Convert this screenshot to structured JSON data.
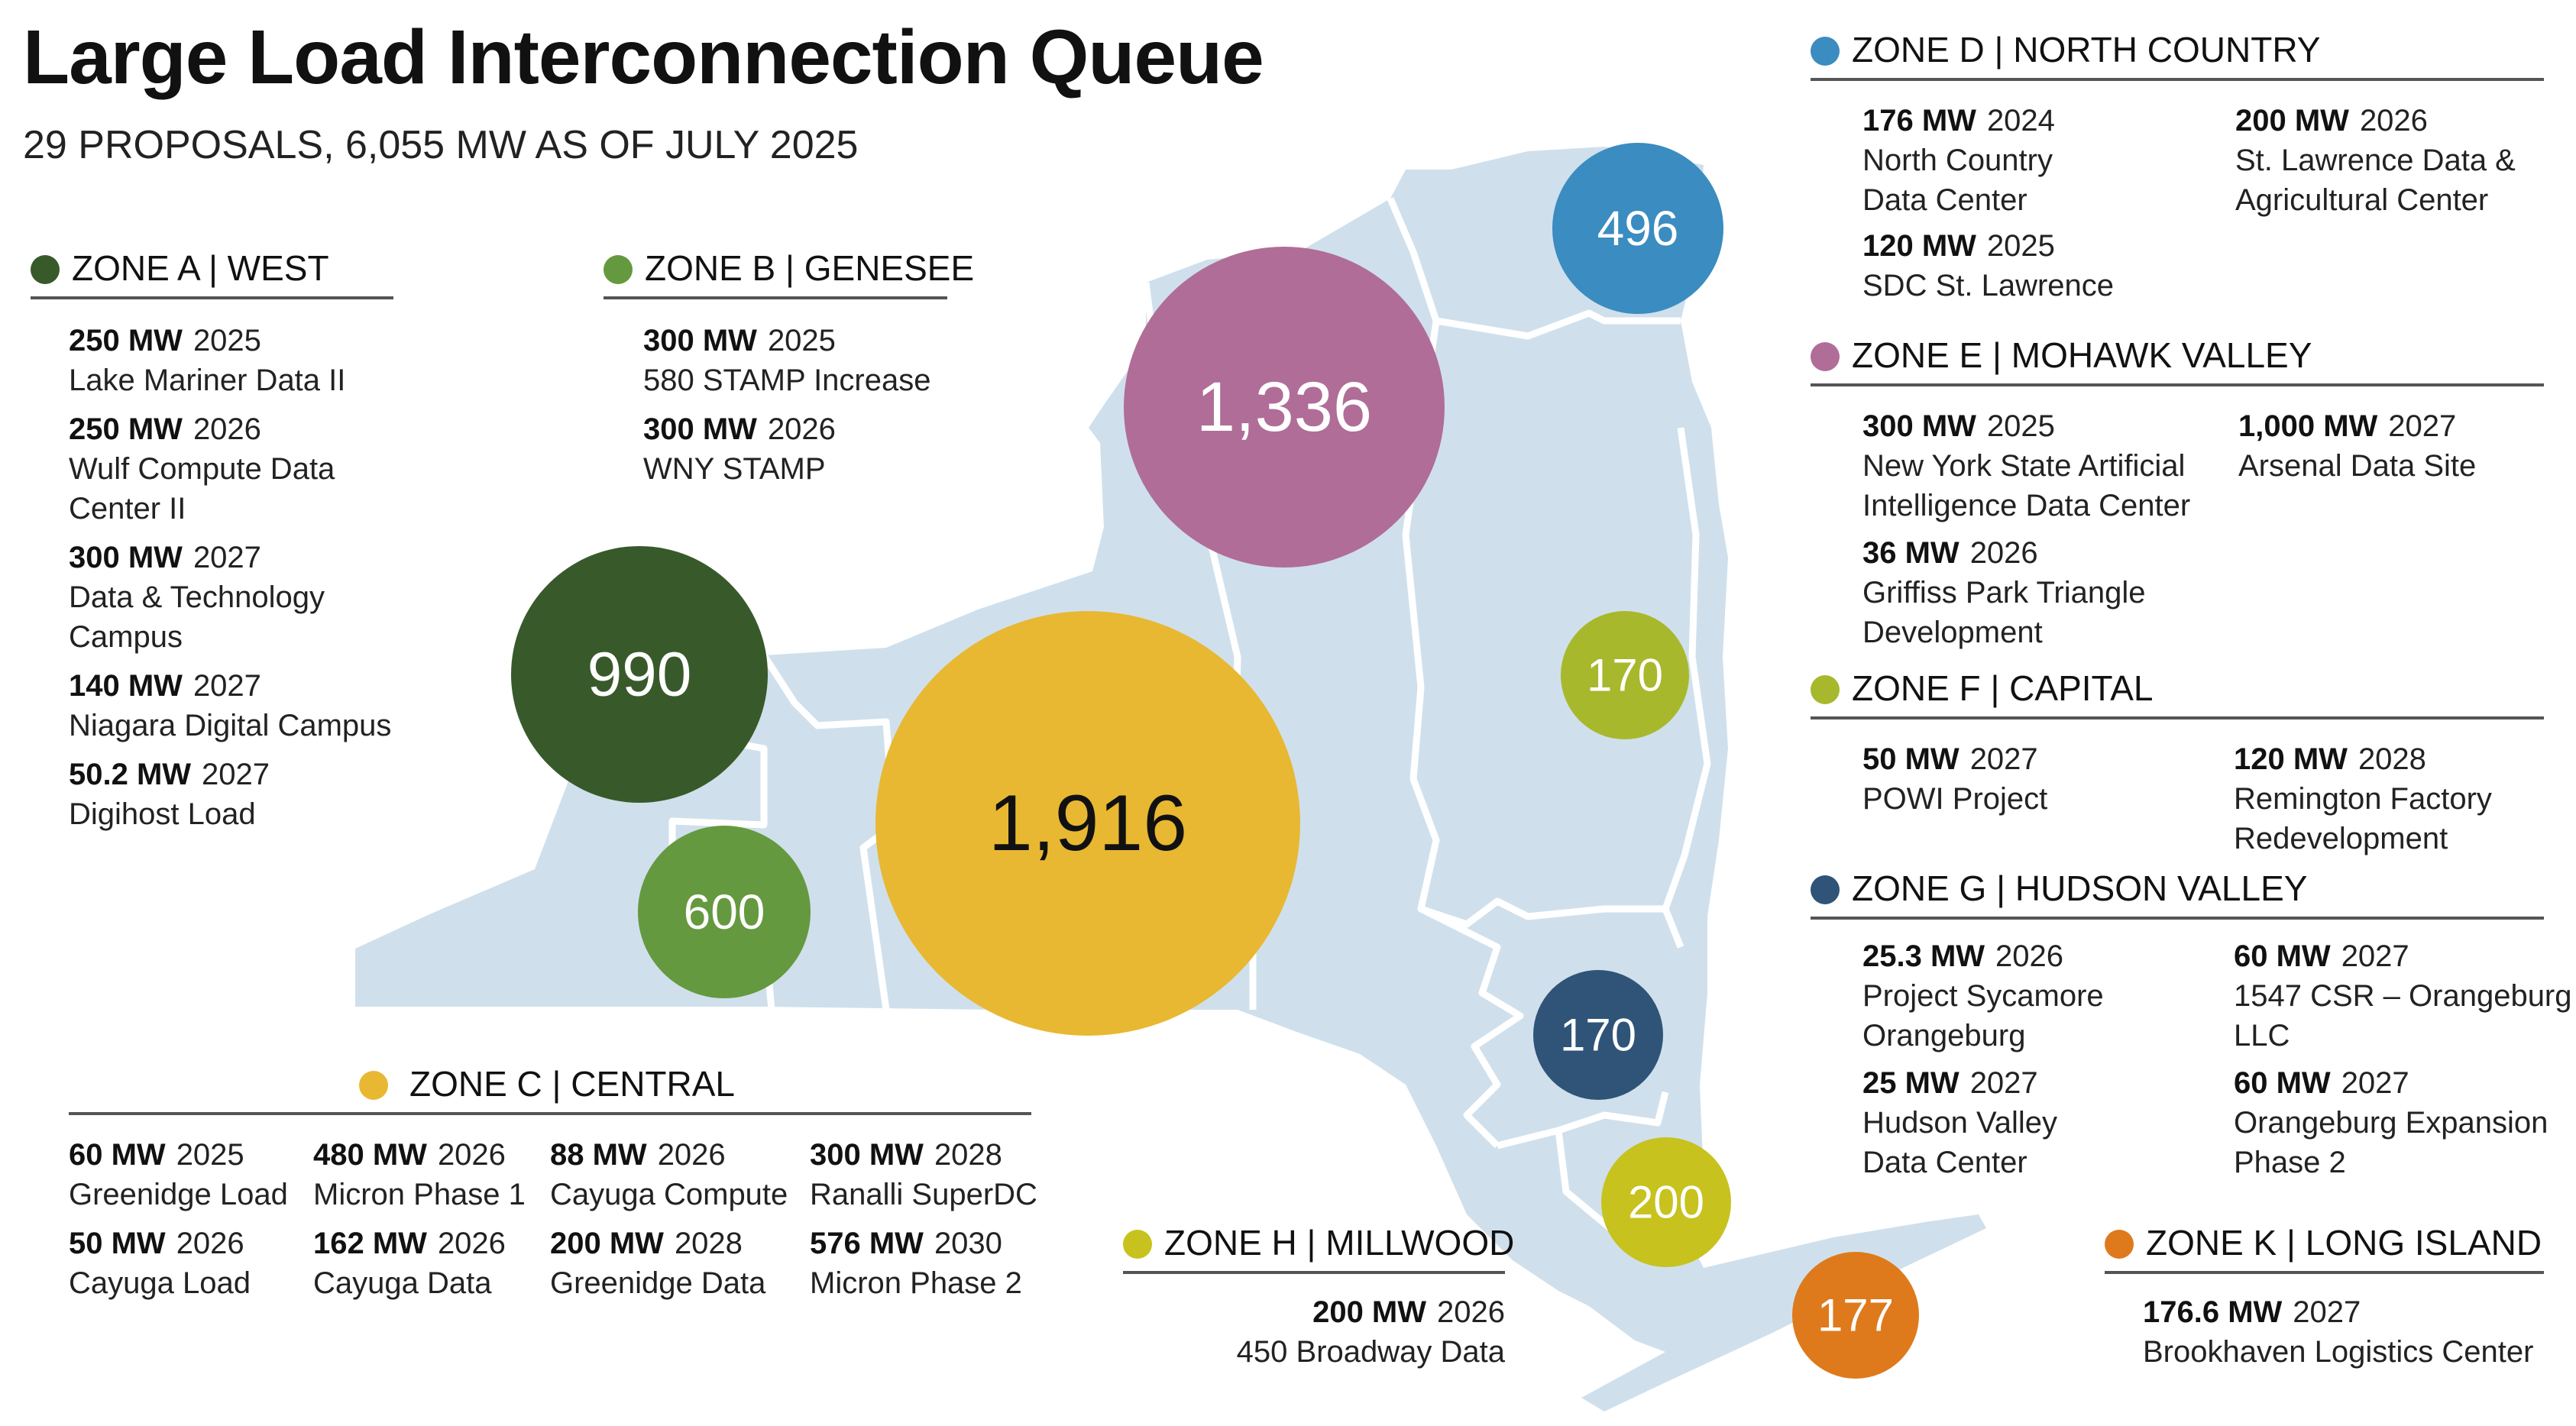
{
  "title": "Large Load Interconnection Queue",
  "subtitle": "29 PROPOSALS, 6,055 MW AS OF JULY 2025",
  "colors": {
    "map_fill": "#cfe0ec",
    "border": "#ffffff",
    "A": "#385a2b",
    "B": "#65993f",
    "C": "#e8b832",
    "D": "#3b8cc0",
    "E": "#b06d98",
    "F": "#a8b82c",
    "G": "#2f5478",
    "H": "#c7c21e",
    "K": "#de7a1c"
  },
  "bubbles": [
    {
      "zone": "A",
      "label": "990",
      "value": 990
    },
    {
      "zone": "B",
      "label": "600",
      "value": 600
    },
    {
      "zone": "C",
      "label": "1,916",
      "value": 1916
    },
    {
      "zone": "D",
      "label": "496",
      "value": 496
    },
    {
      "zone": "E",
      "label": "1,336",
      "value": 1336
    },
    {
      "zone": "F",
      "label": "170",
      "value": 170
    },
    {
      "zone": "G",
      "label": "170",
      "value": 170
    },
    {
      "zone": "H",
      "label": "200",
      "value": 200
    },
    {
      "zone": "K",
      "label": "177",
      "value": 177
    }
  ],
  "zones": {
    "A": {
      "label": "ZONE A | WEST",
      "entries": [
        {
          "mw": "250 MW",
          "year": "2025",
          "name": [
            "Lake Mariner Data II"
          ]
        },
        {
          "mw": "250 MW",
          "year": "2026",
          "name": [
            "Wulf Compute Data",
            "Center II"
          ]
        },
        {
          "mw": "300 MW",
          "year": "2027",
          "name": [
            "Data & Technology",
            "Campus"
          ]
        },
        {
          "mw": "140 MW",
          "year": "2027",
          "name": [
            "Niagara Digital Campus"
          ]
        },
        {
          "mw": "50.2 MW",
          "year": "2027",
          "name": [
            "Digihost Load"
          ]
        }
      ]
    },
    "B": {
      "label": "ZONE B  | GENESEE",
      "entries": [
        {
          "mw": "300 MW",
          "year": "2025",
          "name": [
            "580 STAMP Increase"
          ]
        },
        {
          "mw": "300 MW",
          "year": "2026",
          "name": [
            "WNY STAMP"
          ]
        }
      ]
    },
    "C": {
      "label": "ZONE C | CENTRAL",
      "entries": [
        {
          "mw": "60 MW",
          "year": "2025",
          "name": [
            "Greenidge Load"
          ]
        },
        {
          "mw": "480 MW",
          "year": "2026",
          "name": [
            "Micron Phase 1"
          ]
        },
        {
          "mw": "88 MW",
          "year": "2026",
          "name": [
            "Cayuga Compute"
          ]
        },
        {
          "mw": "300 MW",
          "year": "2028",
          "name": [
            "Ranalli SuperDC"
          ]
        },
        {
          "mw": "50 MW",
          "year": "2026",
          "name": [
            "Cayuga Load"
          ]
        },
        {
          "mw": "162 MW",
          "year": "2026",
          "name": [
            "Cayuga Data"
          ]
        },
        {
          "mw": "200 MW",
          "year": "2028",
          "name": [
            "Greenidge Data"
          ]
        },
        {
          "mw": "576 MW",
          "year": "2030",
          "name": [
            "Micron Phase 2"
          ]
        }
      ]
    },
    "D": {
      "label": "ZONE D | NORTH COUNTRY",
      "entries": [
        {
          "mw": "176 MW",
          "year": "2024",
          "name": [
            "North Country",
            "Data Center"
          ]
        },
        {
          "mw": "200 MW",
          "year": "2026",
          "name": [
            "St. Lawrence Data &",
            "Agricultural Center"
          ]
        },
        {
          "mw": "120 MW",
          "year": "2025",
          "name": [
            "SDC St. Lawrence"
          ]
        }
      ]
    },
    "E": {
      "label": "ZONE E | MOHAWK VALLEY",
      "entries": [
        {
          "mw": "300 MW",
          "year": "2025",
          "name": [
            "New York State Artificial",
            "Intelligence Data Center"
          ]
        },
        {
          "mw": "1,000 MW",
          "year": "2027",
          "name": [
            "Arsenal Data Site"
          ]
        },
        {
          "mw": "36 MW",
          "year": "2026",
          "name": [
            "Griffiss Park Triangle",
            "Development"
          ]
        }
      ]
    },
    "F": {
      "label": "ZONE F | CAPITAL",
      "entries": [
        {
          "mw": "50 MW",
          "year": "2027",
          "name": [
            "POWI Project"
          ]
        },
        {
          "mw": "120 MW",
          "year": "2028",
          "name": [
            "Remington Factory",
            "Redevelopment"
          ]
        }
      ]
    },
    "G": {
      "label": "ZONE G | HUDSON VALLEY",
      "entries": [
        {
          "mw": "25.3 MW",
          "year": "2026",
          "name": [
            "Project Sycamore",
            "Orangeburg"
          ]
        },
        {
          "mw": "60 MW",
          "year": "2027",
          "name": [
            "1547 CSR – Orangeburg",
            "LLC"
          ]
        },
        {
          "mw": "25 MW",
          "year": "2027",
          "name": [
            "Hudson Valley",
            "Data Center"
          ]
        },
        {
          "mw": "60 MW",
          "year": "2027",
          "name": [
            "Orangeburg Expansion",
            "Phase 2"
          ]
        }
      ]
    },
    "H": {
      "label": "ZONE H | MILLWOOD",
      "entries": [
        {
          "mw": "200 MW",
          "year": "2026",
          "name": [
            "450 Broadway Data"
          ]
        }
      ]
    },
    "K": {
      "label": "ZONE K | LONG ISLAND",
      "entries": [
        {
          "mw": "176.6 MW",
          "year": "2027",
          "name": [
            "Brookhaven Logistics Center"
          ]
        }
      ]
    }
  }
}
